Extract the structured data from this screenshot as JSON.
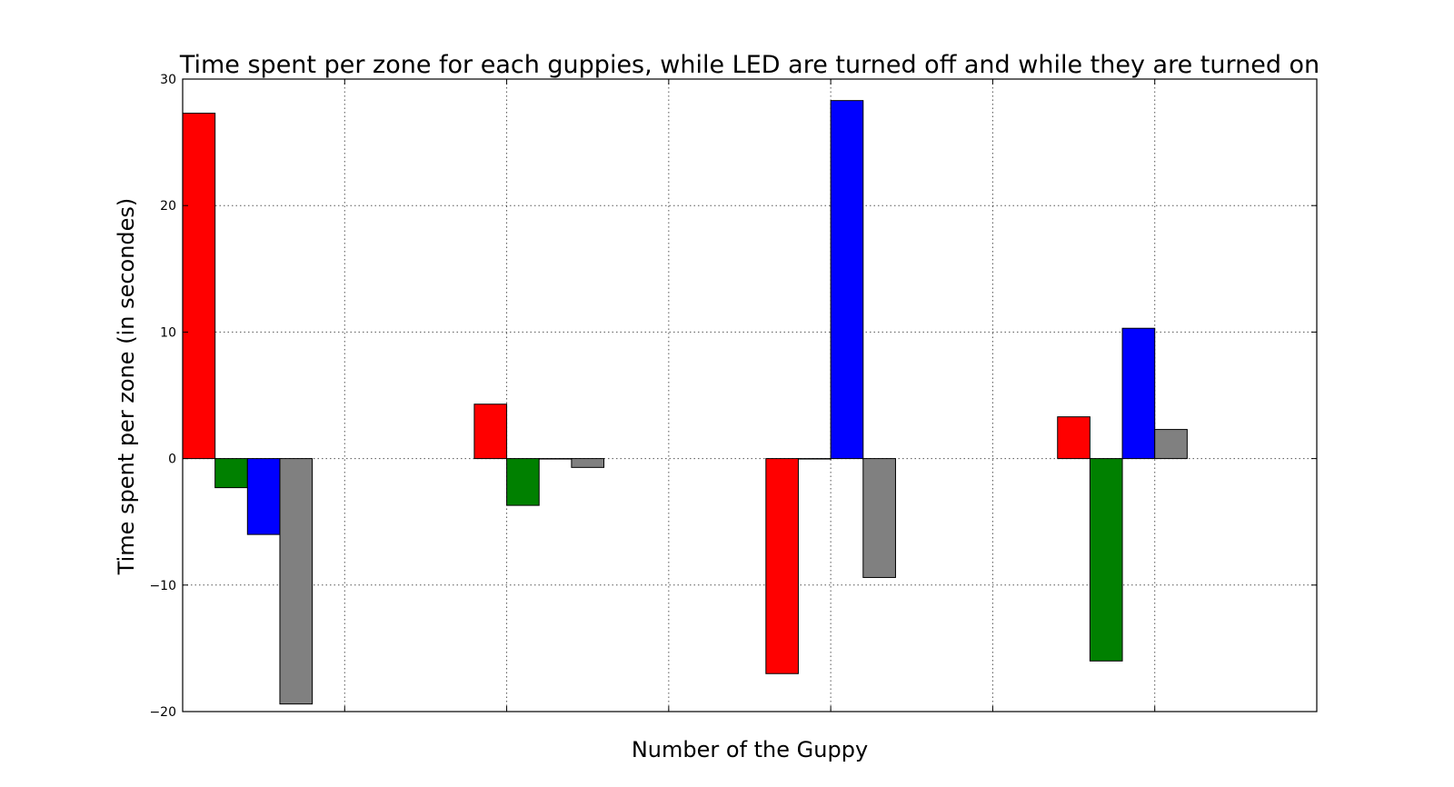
{
  "chart_data": {
    "type": "bar",
    "title": "Time spent per zone for each guppies, while LED are turned off and while they are turned on",
    "xlabel": "Number of the Guppy",
    "ylabel": "Time spent per zone (in secondes)",
    "ylim": [
      -20,
      30
    ],
    "yticks": [
      -20,
      -10,
      0,
      10,
      20,
      30
    ],
    "ytick_labels": [
      "−20",
      "−10",
      "0",
      "10",
      "20",
      "30"
    ],
    "xtick_count": 7,
    "xlim": [
      0,
      7
    ],
    "grid": true,
    "bar_width": 0.2,
    "group_starts": [
      0,
      1.8,
      3.6,
      5.4
    ],
    "series": [
      {
        "color": "#ff0000",
        "values": [
          27.3,
          4.3,
          -17.0,
          3.3
        ]
      },
      {
        "color": "#008000",
        "values": [
          -2.3,
          -3.7,
          0.0,
          -16.0
        ]
      },
      {
        "color": "#0000ff",
        "values": [
          -6.0,
          0.0,
          28.3,
          10.3
        ]
      },
      {
        "color": "#808080",
        "values": [
          -19.4,
          -0.7,
          -9.4,
          2.3
        ]
      }
    ]
  }
}
